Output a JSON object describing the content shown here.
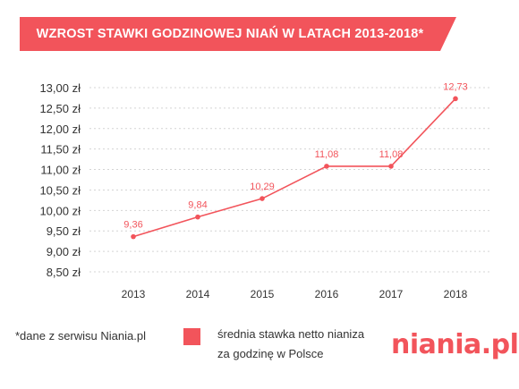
{
  "banner": {
    "title": "WZROST STAWKI GODZINOWEJ NIAŃ W LATACH 2013-2018*",
    "color": "#f2545b"
  },
  "chart_data": {
    "type": "line",
    "title": "WZROST STAWKI GODZINOWEJ NIAŃ W LATACH 2013-2018*",
    "categories": [
      "2013",
      "2014",
      "2015",
      "2016",
      "2017",
      "2018"
    ],
    "series": [
      {
        "name": "średnia stawka netto nianiza godzinę w Polsce",
        "values": [
          9.36,
          9.84,
          10.29,
          11.08,
          11.08,
          12.73
        ],
        "labels": [
          "9,36",
          "9,84",
          "10,29",
          "11,08",
          "11,08",
          "12,73"
        ],
        "color": "#f2545b"
      }
    ],
    "y_ticks": [
      "8,50 zł",
      "9,00 zł",
      "9,50 zł",
      "10,00 zł",
      "10,50 zł",
      "11,00 zł",
      "11,50 zł",
      "12,00 zł",
      "12,50 zł",
      "13,00 zł"
    ],
    "ylim": [
      8.5,
      13.0
    ],
    "grid": true,
    "legend": "bottom"
  },
  "footnote": "*dane z serwisu Niania.pl",
  "legend": {
    "line1": "średnia stawka netto nianiza",
    "line2": "za godzinę w Polsce",
    "color": "#f2545b"
  },
  "logo": "niania.pl"
}
